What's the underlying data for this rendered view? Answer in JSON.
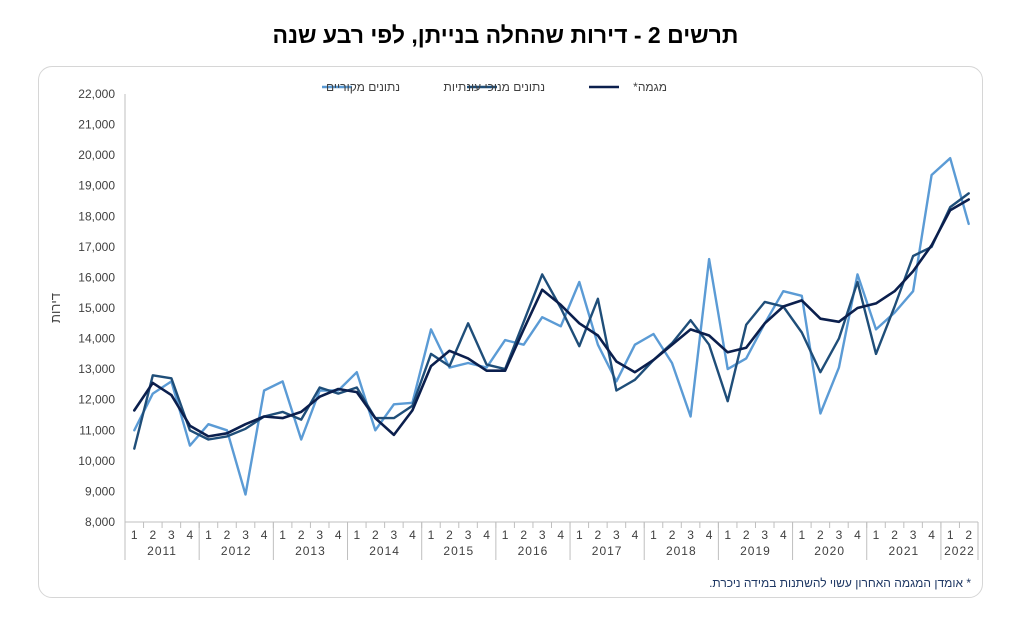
{
  "page": {
    "title": "תרשים 2 - דירות שהחלה בנייתן, לפי רבע שנה",
    "footnote": "* אומדן המגמה האחרון עשוי להשתנות במידה ניכרת."
  },
  "chart_data": {
    "type": "line",
    "title": "תרשים 2 - דירות שהחלה בנייתן, לפי רבע שנה",
    "ylabel": "דירות",
    "xlabel": "",
    "ylim": [
      8000,
      22000
    ],
    "ytick_step": 1000,
    "grid": false,
    "legend_position": "top",
    "years": [
      "2011",
      "2012",
      "2013",
      "2014",
      "2015",
      "2016",
      "2017",
      "2018",
      "2019",
      "2020",
      "2021",
      "2022"
    ],
    "quarters_per_year": [
      4,
      4,
      4,
      4,
      4,
      4,
      4,
      4,
      4,
      4,
      4,
      2
    ],
    "series": [
      {
        "name": "נתונים מקוריים",
        "color": "#5b9bd5",
        "values": [
          11000,
          12200,
          12600,
          10500,
          11200,
          11000,
          8900,
          12300,
          12600,
          10700,
          12300,
          12300,
          12900,
          11000,
          11850,
          11900,
          14300,
          13050,
          13200,
          13050,
          13950,
          13800,
          14700,
          14400,
          15850,
          13800,
          12600,
          13800,
          14150,
          13200,
          11450,
          16600,
          13000,
          13350,
          14500,
          15550,
          15400,
          11550,
          13050,
          16100,
          14300,
          14850,
          15550,
          19350,
          19900,
          17750
        ]
      },
      {
        "name": "נתונים מנוכי עונתיות",
        "color": "#1f4e79",
        "values": [
          10400,
          12800,
          12700,
          11000,
          10700,
          10800,
          11050,
          11450,
          11600,
          11350,
          12400,
          12200,
          12400,
          11400,
          11400,
          11800,
          13500,
          13100,
          14500,
          13150,
          13000,
          14550,
          16100,
          15000,
          13750,
          15300,
          12300,
          12650,
          13300,
          13850,
          14600,
          13800,
          11950,
          14450,
          15200,
          15050,
          14200,
          12900,
          14000,
          15850,
          13500,
          15050,
          16700,
          17000,
          18300,
          18750
        ]
      },
      {
        "name": "מגמה*",
        "color": "#0b1f4d",
        "values": [
          11650,
          12550,
          12150,
          11150,
          10800,
          10900,
          11200,
          11450,
          11400,
          11600,
          12100,
          12350,
          12250,
          11400,
          10850,
          11650,
          13100,
          13600,
          13350,
          12950,
          12950,
          14300,
          15600,
          15100,
          14500,
          14100,
          13250,
          12900,
          13300,
          13800,
          14300,
          14100,
          13550,
          13700,
          14500,
          15050,
          15250,
          14650,
          14550,
          15000,
          15150,
          15550,
          16200,
          17050,
          18200,
          18550
        ]
      }
    ]
  }
}
